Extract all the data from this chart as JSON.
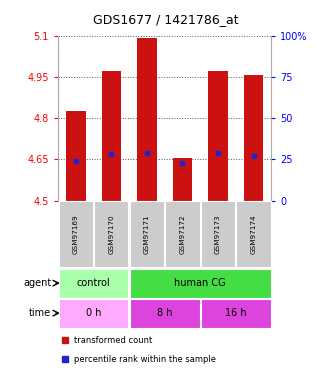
{
  "title": "GDS1677 / 1421786_at",
  "samples": [
    "GSM97169",
    "GSM97170",
    "GSM97171",
    "GSM97172",
    "GSM97173",
    "GSM97174"
  ],
  "bar_tops": [
    4.825,
    4.97,
    5.092,
    4.655,
    4.972,
    4.958
  ],
  "bar_bottom": 4.5,
  "blue_dots": [
    4.645,
    4.67,
    4.672,
    4.638,
    4.672,
    4.663
  ],
  "ylim_left": [
    4.5,
    5.1
  ],
  "yticks_left": [
    4.5,
    4.65,
    4.8,
    4.95,
    5.1
  ],
  "ytick_labels_left": [
    "4.5",
    "4.65",
    "4.8",
    "4.95",
    "5.1"
  ],
  "yticks_right": [
    0,
    25,
    50,
    75,
    100
  ],
  "ytick_labels_right": [
    "0",
    "25",
    "50",
    "75",
    "100%"
  ],
  "bar_color": "#cc1111",
  "blue_color": "#2222cc",
  "bar_width": 0.55,
  "grid_color": "#555555",
  "sample_bg_color": "#cccccc",
  "legend_red_text": "transformed count",
  "legend_blue_text": "percentile rank within the sample"
}
